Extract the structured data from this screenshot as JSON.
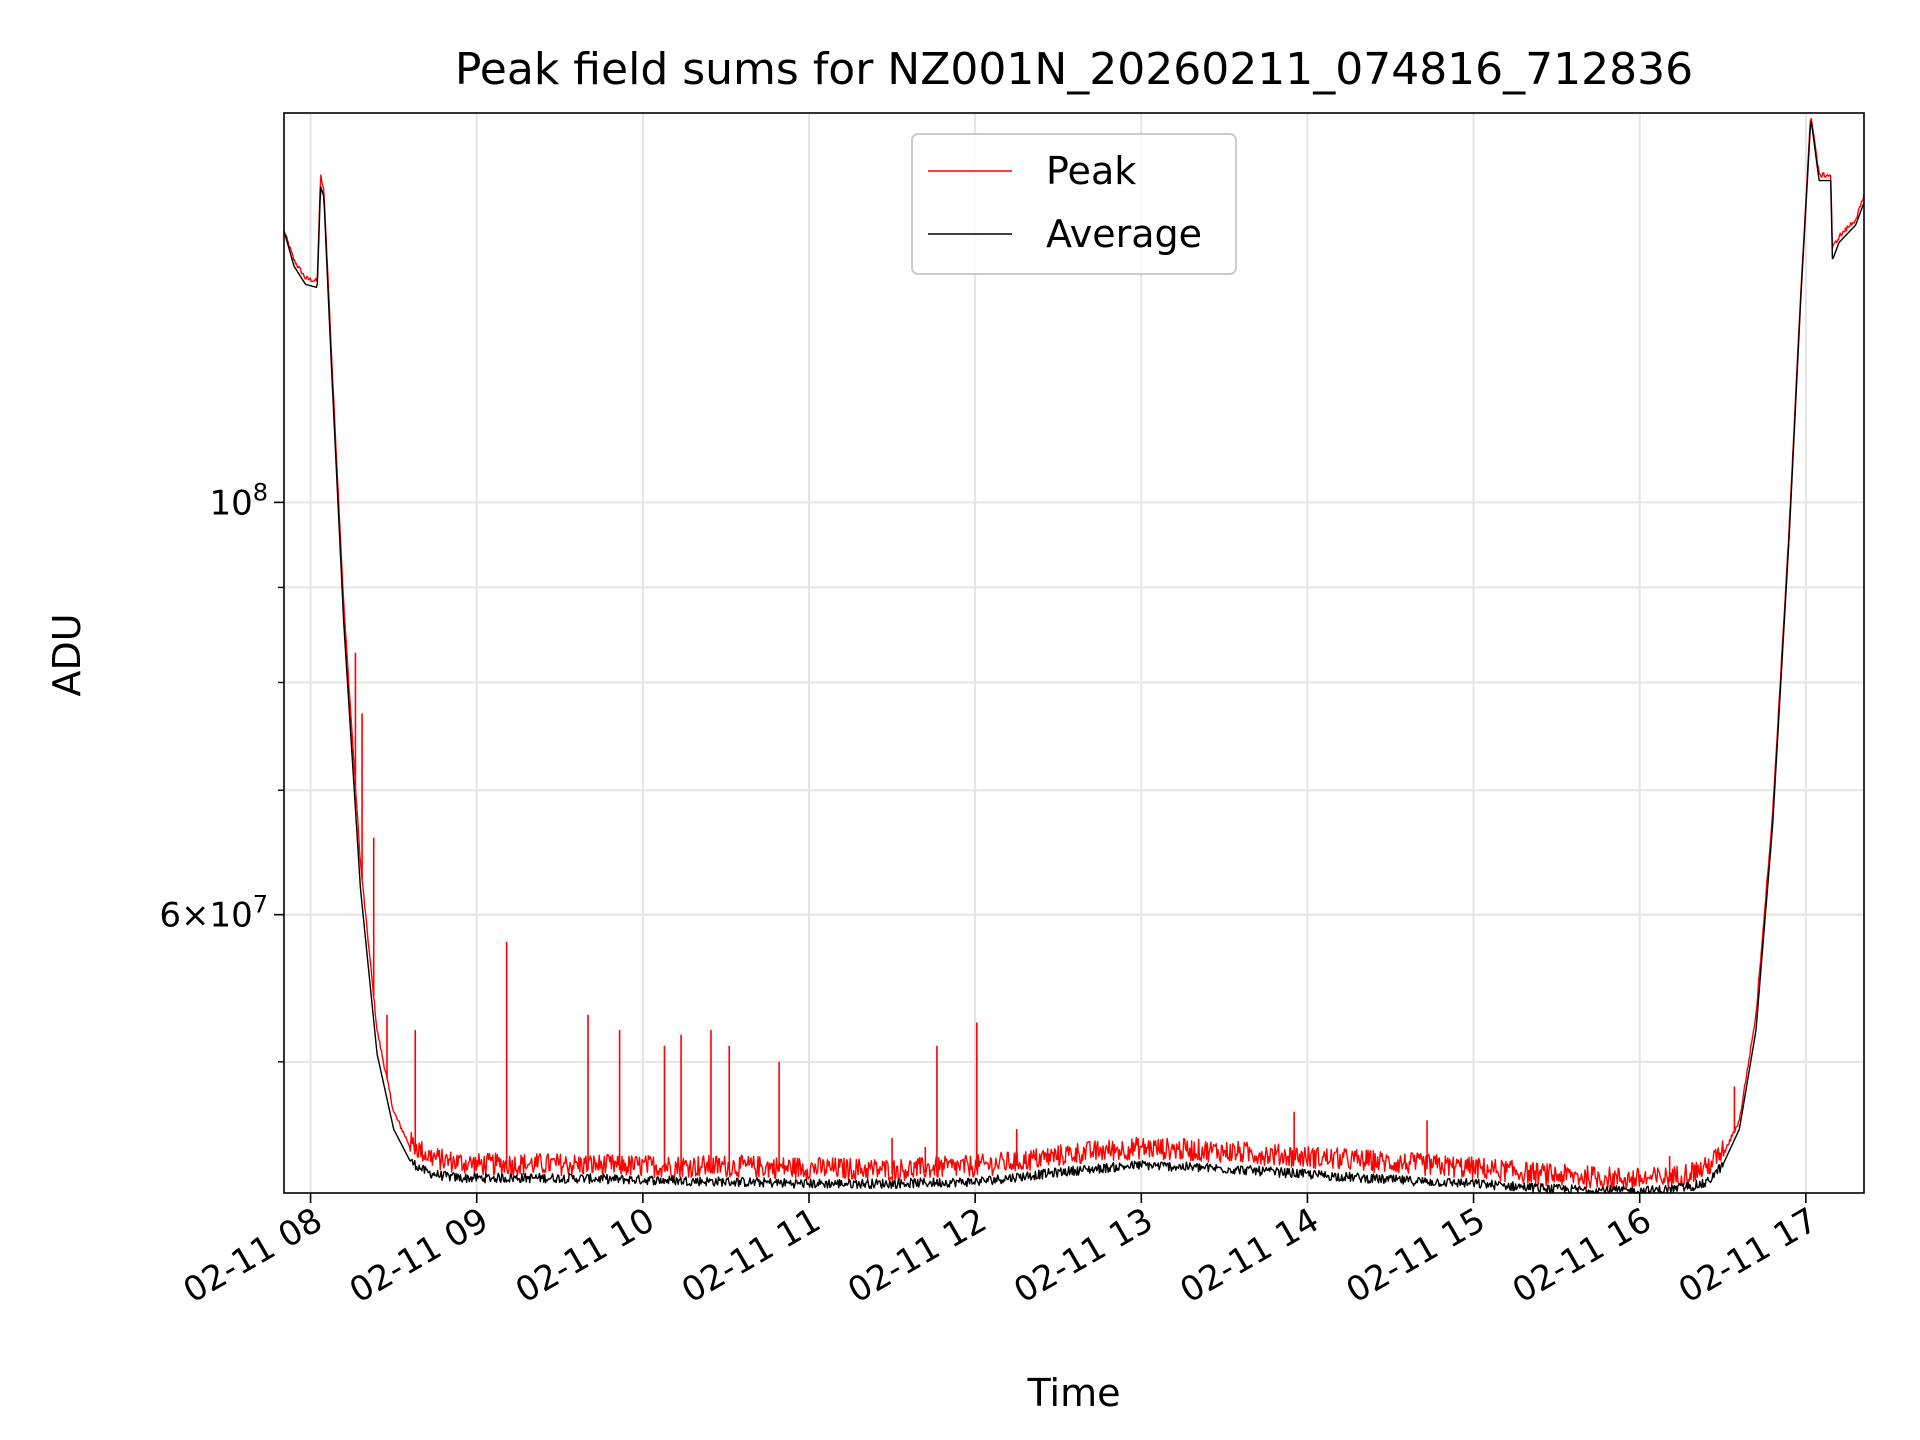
{
  "chart_data": {
    "type": "line",
    "title": "Peak field sums for NZ001N_20260211_074816_712836",
    "xlabel": "Time",
    "ylabel": "ADU",
    "yscale": "log",
    "xlim_hours": [
      7.84,
      17.35
    ],
    "ylim": [
      42500000,
      162000000
    ],
    "grid": true,
    "legend_location": "upper center",
    "x_ticks": [
      {
        "value": 8,
        "label": "02-11 08"
      },
      {
        "value": 9,
        "label": "02-11 09"
      },
      {
        "value": 10,
        "label": "02-11 10"
      },
      {
        "value": 11,
        "label": "02-11 11"
      },
      {
        "value": 12,
        "label": "02-11 12"
      },
      {
        "value": 13,
        "label": "02-11 13"
      },
      {
        "value": 14,
        "label": "02-11 14"
      },
      {
        "value": 15,
        "label": "02-11 15"
      },
      {
        "value": 16,
        "label": "02-11 16"
      },
      {
        "value": 17,
        "label": "02-11 17"
      }
    ],
    "y_major_ticks": [
      {
        "value": 100000000,
        "base": "10",
        "exp": "8"
      },
      {
        "value": 60000000,
        "base": "6×10",
        "exp": "7"
      }
    ],
    "y_minor_ticks": [
      50000000,
      60000000,
      70000000,
      80000000,
      90000000
    ],
    "series": [
      {
        "name": "Peak",
        "color": "#ff0000",
        "x": [
          7.84,
          7.9,
          7.97,
          8.04,
          8.06,
          8.08,
          8.1,
          8.13,
          8.2,
          8.3,
          8.4,
          8.5,
          8.6,
          8.7,
          8.8,
          8.9,
          9.0,
          9.5,
          10.0,
          10.5,
          11.0,
          11.5,
          12.0,
          12.3,
          12.6,
          13.0,
          13.5,
          14.0,
          14.5,
          15.0,
          15.5,
          16.0,
          16.2,
          16.4,
          16.5,
          16.6,
          16.7,
          16.8,
          16.9,
          16.97,
          17.03,
          17.08,
          17.15,
          17.16,
          17.2,
          17.3,
          17.35
        ],
        "values": [
          140000000,
          135000000,
          132000000,
          131500000,
          150000000,
          147000000,
          135000000,
          118000000,
          88000000,
          64000000,
          52000000,
          47000000,
          45000000,
          44300000,
          44000000,
          43900000,
          43800000,
          43800000,
          43700000,
          43700000,
          43600000,
          43500000,
          43700000,
          44000000,
          44400000,
          44700000,
          44500000,
          44200000,
          43900000,
          43600000,
          43200000,
          43000000,
          43100000,
          43600000,
          44500000,
          46500000,
          53000000,
          68000000,
          97000000,
          130000000,
          162000000,
          150000000,
          150000000,
          137000000,
          139000000,
          142000000,
          146000000
        ],
        "spikes": [
          {
            "x": 8.27,
            "value": 83000000
          },
          {
            "x": 8.31,
            "value": 77000000
          },
          {
            "x": 8.38,
            "value": 66000000
          },
          {
            "x": 8.46,
            "value": 53000000
          },
          {
            "x": 8.63,
            "value": 52000000
          },
          {
            "x": 9.18,
            "value": 58000000
          },
          {
            "x": 9.67,
            "value": 53000000
          },
          {
            "x": 9.86,
            "value": 52000000
          },
          {
            "x": 10.13,
            "value": 51000000
          },
          {
            "x": 10.23,
            "value": 51700000
          },
          {
            "x": 10.41,
            "value": 52000000
          },
          {
            "x": 10.52,
            "value": 51000000
          },
          {
            "x": 10.82,
            "value": 50000000
          },
          {
            "x": 11.5,
            "value": 45500000
          },
          {
            "x": 11.7,
            "value": 45000000
          },
          {
            "x": 11.77,
            "value": 51000000
          },
          {
            "x": 12.01,
            "value": 52500000
          },
          {
            "x": 12.25,
            "value": 46000000
          },
          {
            "x": 13.03,
            "value": 44800000
          },
          {
            "x": 13.92,
            "value": 47000000
          },
          {
            "x": 14.72,
            "value": 46500000
          },
          {
            "x": 16.18,
            "value": 44500000
          },
          {
            "x": 16.57,
            "value": 48500000
          }
        ]
      },
      {
        "name": "Average",
        "color": "#000000",
        "x": [
          7.84,
          7.9,
          7.97,
          8.04,
          8.06,
          8.08,
          8.1,
          8.13,
          8.2,
          8.3,
          8.4,
          8.5,
          8.6,
          8.7,
          8.8,
          8.9,
          9.0,
          9.5,
          10.0,
          10.5,
          11.0,
          11.5,
          12.0,
          12.3,
          12.6,
          13.0,
          13.5,
          14.0,
          14.5,
          15.0,
          15.5,
          16.0,
          16.2,
          16.4,
          16.5,
          16.6,
          16.7,
          16.8,
          16.9,
          16.97,
          17.03,
          17.08,
          17.15,
          17.16,
          17.2,
          17.3,
          17.35
        ],
        "values": [
          140000000,
          134000000,
          131000000,
          130500000,
          148000000,
          146000000,
          133000000,
          116000000,
          86000000,
          62000000,
          50500000,
          46000000,
          44200000,
          43600000,
          43400000,
          43300000,
          43300000,
          43300000,
          43200000,
          43100000,
          43000000,
          43000000,
          43100000,
          43400000,
          43700000,
          44000000,
          43800000,
          43500000,
          43200000,
          43000000,
          42700000,
          42600000,
          42700000,
          43000000,
          44000000,
          46000000,
          52000000,
          67000000,
          96000000,
          129000000,
          161000000,
          149000000,
          149000000,
          135000000,
          138000000,
          141000000,
          145000000
        ]
      }
    ]
  }
}
